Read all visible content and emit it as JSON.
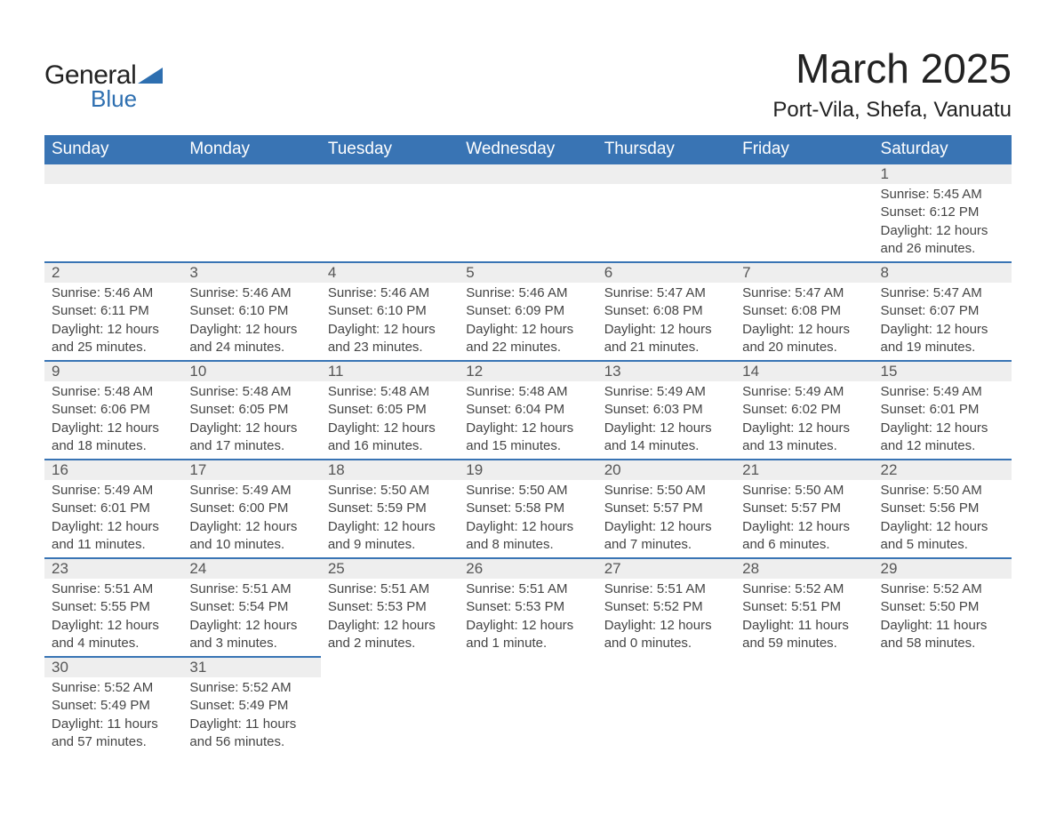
{
  "brand": {
    "general": "General",
    "blue": "Blue"
  },
  "title": "March 2025",
  "subtitle": "Port-Vila, Shefa, Vanuatu",
  "colors": {
    "header_bg": "#3974b4",
    "header_text": "#ffffff",
    "daynum_bg": "#eeeeee",
    "row_border": "#3974b4",
    "text": "#444444",
    "logo_blue": "#2e6fb0"
  },
  "layout": {
    "columns": 7,
    "rows": 6,
    "first_weekday": "Sunday",
    "title_fontsize": 46,
    "subtitle_fontsize": 24,
    "header_fontsize": 19,
    "daynum_fontsize": 17,
    "body_fontsize": 15
  },
  "weekdays": [
    "Sunday",
    "Monday",
    "Tuesday",
    "Wednesday",
    "Thursday",
    "Friday",
    "Saturday"
  ],
  "weeks": [
    [
      {
        "empty": true
      },
      {
        "empty": true
      },
      {
        "empty": true
      },
      {
        "empty": true
      },
      {
        "empty": true
      },
      {
        "empty": true
      },
      {
        "day": "1",
        "sunrise": "Sunrise: 5:45 AM",
        "sunset": "Sunset: 6:12 PM",
        "daylight1": "Daylight: 12 hours",
        "daylight2": "and 26 minutes."
      }
    ],
    [
      {
        "day": "2",
        "sunrise": "Sunrise: 5:46 AM",
        "sunset": "Sunset: 6:11 PM",
        "daylight1": "Daylight: 12 hours",
        "daylight2": "and 25 minutes."
      },
      {
        "day": "3",
        "sunrise": "Sunrise: 5:46 AM",
        "sunset": "Sunset: 6:10 PM",
        "daylight1": "Daylight: 12 hours",
        "daylight2": "and 24 minutes."
      },
      {
        "day": "4",
        "sunrise": "Sunrise: 5:46 AM",
        "sunset": "Sunset: 6:10 PM",
        "daylight1": "Daylight: 12 hours",
        "daylight2": "and 23 minutes."
      },
      {
        "day": "5",
        "sunrise": "Sunrise: 5:46 AM",
        "sunset": "Sunset: 6:09 PM",
        "daylight1": "Daylight: 12 hours",
        "daylight2": "and 22 minutes."
      },
      {
        "day": "6",
        "sunrise": "Sunrise: 5:47 AM",
        "sunset": "Sunset: 6:08 PM",
        "daylight1": "Daylight: 12 hours",
        "daylight2": "and 21 minutes."
      },
      {
        "day": "7",
        "sunrise": "Sunrise: 5:47 AM",
        "sunset": "Sunset: 6:08 PM",
        "daylight1": "Daylight: 12 hours",
        "daylight2": "and 20 minutes."
      },
      {
        "day": "8",
        "sunrise": "Sunrise: 5:47 AM",
        "sunset": "Sunset: 6:07 PM",
        "daylight1": "Daylight: 12 hours",
        "daylight2": "and 19 minutes."
      }
    ],
    [
      {
        "day": "9",
        "sunrise": "Sunrise: 5:48 AM",
        "sunset": "Sunset: 6:06 PM",
        "daylight1": "Daylight: 12 hours",
        "daylight2": "and 18 minutes."
      },
      {
        "day": "10",
        "sunrise": "Sunrise: 5:48 AM",
        "sunset": "Sunset: 6:05 PM",
        "daylight1": "Daylight: 12 hours",
        "daylight2": "and 17 minutes."
      },
      {
        "day": "11",
        "sunrise": "Sunrise: 5:48 AM",
        "sunset": "Sunset: 6:05 PM",
        "daylight1": "Daylight: 12 hours",
        "daylight2": "and 16 minutes."
      },
      {
        "day": "12",
        "sunrise": "Sunrise: 5:48 AM",
        "sunset": "Sunset: 6:04 PM",
        "daylight1": "Daylight: 12 hours",
        "daylight2": "and 15 minutes."
      },
      {
        "day": "13",
        "sunrise": "Sunrise: 5:49 AM",
        "sunset": "Sunset: 6:03 PM",
        "daylight1": "Daylight: 12 hours",
        "daylight2": "and 14 minutes."
      },
      {
        "day": "14",
        "sunrise": "Sunrise: 5:49 AM",
        "sunset": "Sunset: 6:02 PM",
        "daylight1": "Daylight: 12 hours",
        "daylight2": "and 13 minutes."
      },
      {
        "day": "15",
        "sunrise": "Sunrise: 5:49 AM",
        "sunset": "Sunset: 6:01 PM",
        "daylight1": "Daylight: 12 hours",
        "daylight2": "and 12 minutes."
      }
    ],
    [
      {
        "day": "16",
        "sunrise": "Sunrise: 5:49 AM",
        "sunset": "Sunset: 6:01 PM",
        "daylight1": "Daylight: 12 hours",
        "daylight2": "and 11 minutes."
      },
      {
        "day": "17",
        "sunrise": "Sunrise: 5:49 AM",
        "sunset": "Sunset: 6:00 PM",
        "daylight1": "Daylight: 12 hours",
        "daylight2": "and 10 minutes."
      },
      {
        "day": "18",
        "sunrise": "Sunrise: 5:50 AM",
        "sunset": "Sunset: 5:59 PM",
        "daylight1": "Daylight: 12 hours",
        "daylight2": "and 9 minutes."
      },
      {
        "day": "19",
        "sunrise": "Sunrise: 5:50 AM",
        "sunset": "Sunset: 5:58 PM",
        "daylight1": "Daylight: 12 hours",
        "daylight2": "and 8 minutes."
      },
      {
        "day": "20",
        "sunrise": "Sunrise: 5:50 AM",
        "sunset": "Sunset: 5:57 PM",
        "daylight1": "Daylight: 12 hours",
        "daylight2": "and 7 minutes."
      },
      {
        "day": "21",
        "sunrise": "Sunrise: 5:50 AM",
        "sunset": "Sunset: 5:57 PM",
        "daylight1": "Daylight: 12 hours",
        "daylight2": "and 6 minutes."
      },
      {
        "day": "22",
        "sunrise": "Sunrise: 5:50 AM",
        "sunset": "Sunset: 5:56 PM",
        "daylight1": "Daylight: 12 hours",
        "daylight2": "and 5 minutes."
      }
    ],
    [
      {
        "day": "23",
        "sunrise": "Sunrise: 5:51 AM",
        "sunset": "Sunset: 5:55 PM",
        "daylight1": "Daylight: 12 hours",
        "daylight2": "and 4 minutes."
      },
      {
        "day": "24",
        "sunrise": "Sunrise: 5:51 AM",
        "sunset": "Sunset: 5:54 PM",
        "daylight1": "Daylight: 12 hours",
        "daylight2": "and 3 minutes."
      },
      {
        "day": "25",
        "sunrise": "Sunrise: 5:51 AM",
        "sunset": "Sunset: 5:53 PM",
        "daylight1": "Daylight: 12 hours",
        "daylight2": "and 2 minutes."
      },
      {
        "day": "26",
        "sunrise": "Sunrise: 5:51 AM",
        "sunset": "Sunset: 5:53 PM",
        "daylight1": "Daylight: 12 hours",
        "daylight2": "and 1 minute."
      },
      {
        "day": "27",
        "sunrise": "Sunrise: 5:51 AM",
        "sunset": "Sunset: 5:52 PM",
        "daylight1": "Daylight: 12 hours",
        "daylight2": "and 0 minutes."
      },
      {
        "day": "28",
        "sunrise": "Sunrise: 5:52 AM",
        "sunset": "Sunset: 5:51 PM",
        "daylight1": "Daylight: 11 hours",
        "daylight2": "and 59 minutes."
      },
      {
        "day": "29",
        "sunrise": "Sunrise: 5:52 AM",
        "sunset": "Sunset: 5:50 PM",
        "daylight1": "Daylight: 11 hours",
        "daylight2": "and 58 minutes."
      }
    ],
    [
      {
        "day": "30",
        "sunrise": "Sunrise: 5:52 AM",
        "sunset": "Sunset: 5:49 PM",
        "daylight1": "Daylight: 11 hours",
        "daylight2": "and 57 minutes."
      },
      {
        "day": "31",
        "sunrise": "Sunrise: 5:52 AM",
        "sunset": "Sunset: 5:49 PM",
        "daylight1": "Daylight: 11 hours",
        "daylight2": "and 56 minutes."
      },
      {
        "empty": true
      },
      {
        "empty": true
      },
      {
        "empty": true
      },
      {
        "empty": true
      },
      {
        "empty": true
      }
    ]
  ]
}
